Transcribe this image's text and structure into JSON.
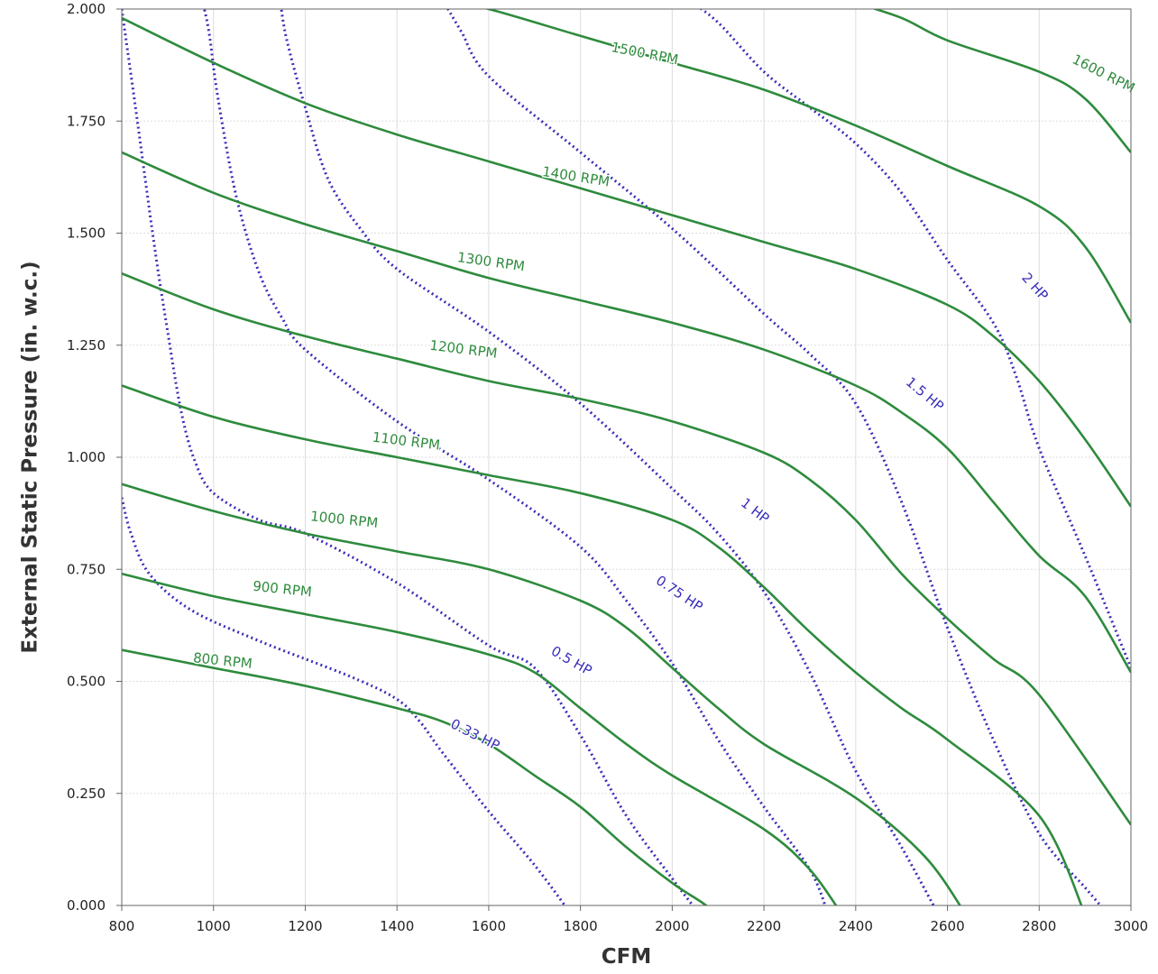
{
  "chart_data": {
    "type": "line",
    "xlabel": "CFM",
    "ylabel": "External Static Pressure (in. w.c.)",
    "xlim": [
      800,
      3000
    ],
    "ylim": [
      0,
      2
    ],
    "x_ticks": [
      800,
      1000,
      1200,
      1400,
      1600,
      1800,
      2000,
      2200,
      2400,
      2600,
      2800,
      3000
    ],
    "y_ticks": [
      {
        "value": 0,
        "label": "0.000"
      },
      {
        "value": 0.25,
        "label": "0.250"
      },
      {
        "value": 0.5,
        "label": "0.500"
      },
      {
        "value": 0.75,
        "label": "0.750"
      },
      {
        "value": 1,
        "label": "1.000"
      },
      {
        "value": 1.25,
        "label": "1.250"
      },
      {
        "value": 1.5,
        "label": "1.500"
      },
      {
        "value": 1.75,
        "label": "1.750"
      },
      {
        "value": 2,
        "label": "2.000"
      }
    ],
    "grid": true,
    "colors": {
      "rpm": "#2e8b3d",
      "hp": "#3a2fb8",
      "grid": "#dddddd",
      "axis": "#666666"
    },
    "rpm_series": [
      {
        "name": "800 RPM",
        "points": [
          [
            800,
            0.57
          ],
          [
            1000,
            0.53
          ],
          [
            1200,
            0.49
          ],
          [
            1400,
            0.44
          ],
          [
            1500,
            0.41
          ],
          [
            1600,
            0.36
          ],
          [
            1700,
            0.29
          ],
          [
            1800,
            0.22
          ],
          [
            1900,
            0.13
          ],
          [
            2000,
            0.05
          ],
          [
            2060,
            0.01
          ],
          [
            2100,
            -0.02
          ]
        ]
      },
      {
        "name": "900 RPM",
        "points": [
          [
            800,
            0.74
          ],
          [
            1000,
            0.69
          ],
          [
            1200,
            0.65
          ],
          [
            1400,
            0.61
          ],
          [
            1600,
            0.56
          ],
          [
            1700,
            0.52
          ],
          [
            1800,
            0.44
          ],
          [
            1900,
            0.36
          ],
          [
            2000,
            0.29
          ],
          [
            2200,
            0.17
          ],
          [
            2300,
            0.08
          ],
          [
            2370,
            -0.02
          ]
        ]
      },
      {
        "name": "1000 RPM",
        "points": [
          [
            800,
            0.94
          ],
          [
            1000,
            0.88
          ],
          [
            1200,
            0.83
          ],
          [
            1400,
            0.79
          ],
          [
            1600,
            0.75
          ],
          [
            1800,
            0.68
          ],
          [
            1900,
            0.62
          ],
          [
            2000,
            0.53
          ],
          [
            2100,
            0.44
          ],
          [
            2200,
            0.36
          ],
          [
            2400,
            0.24
          ],
          [
            2550,
            0.11
          ],
          [
            2640,
            -0.02
          ]
        ]
      },
      {
        "name": "1100 RPM",
        "points": [
          [
            800,
            1.16
          ],
          [
            1000,
            1.09
          ],
          [
            1200,
            1.04
          ],
          [
            1400,
            1.0
          ],
          [
            1600,
            0.96
          ],
          [
            1800,
            0.92
          ],
          [
            2000,
            0.86
          ],
          [
            2100,
            0.8
          ],
          [
            2200,
            0.71
          ],
          [
            2300,
            0.61
          ],
          [
            2400,
            0.52
          ],
          [
            2500,
            0.44
          ],
          [
            2600,
            0.37
          ],
          [
            2800,
            0.2
          ],
          [
            2900,
            -0.02
          ]
        ]
      },
      {
        "name": "1200 RPM",
        "points": [
          [
            800,
            1.41
          ],
          [
            1000,
            1.33
          ],
          [
            1200,
            1.27
          ],
          [
            1400,
            1.22
          ],
          [
            1600,
            1.17
          ],
          [
            1800,
            1.13
          ],
          [
            2000,
            1.08
          ],
          [
            2200,
            1.01
          ],
          [
            2300,
            0.95
          ],
          [
            2400,
            0.86
          ],
          [
            2500,
            0.74
          ],
          [
            2600,
            0.64
          ],
          [
            2700,
            0.55
          ],
          [
            2800,
            0.47
          ],
          [
            3000,
            0.18
          ]
        ]
      },
      {
        "name": "1300 RPM",
        "points": [
          [
            800,
            1.68
          ],
          [
            1000,
            1.59
          ],
          [
            1200,
            1.52
          ],
          [
            1400,
            1.46
          ],
          [
            1600,
            1.4
          ],
          [
            1800,
            1.35
          ],
          [
            2000,
            1.3
          ],
          [
            2200,
            1.24
          ],
          [
            2400,
            1.16
          ],
          [
            2500,
            1.1
          ],
          [
            2600,
            1.02
          ],
          [
            2700,
            0.9
          ],
          [
            2800,
            0.78
          ],
          [
            2900,
            0.69
          ],
          [
            3000,
            0.52
          ]
        ]
      },
      {
        "name": "1400 RPM",
        "points": [
          [
            800,
            1.98
          ],
          [
            1000,
            1.88
          ],
          [
            1200,
            1.79
          ],
          [
            1400,
            1.72
          ],
          [
            1600,
            1.66
          ],
          [
            1800,
            1.6
          ],
          [
            2000,
            1.54
          ],
          [
            2200,
            1.48
          ],
          [
            2400,
            1.42
          ],
          [
            2600,
            1.34
          ],
          [
            2700,
            1.27
          ],
          [
            2800,
            1.17
          ],
          [
            2900,
            1.04
          ],
          [
            3000,
            0.89
          ]
        ]
      },
      {
        "name": "1500 RPM",
        "points": [
          [
            1500,
            2.02
          ],
          [
            1600,
            2.0
          ],
          [
            1800,
            1.94
          ],
          [
            2000,
            1.88
          ],
          [
            2200,
            1.82
          ],
          [
            2400,
            1.74
          ],
          [
            2600,
            1.65
          ],
          [
            2800,
            1.56
          ],
          [
            2900,
            1.47
          ],
          [
            3000,
            1.3
          ]
        ]
      },
      {
        "name": "1600 RPM",
        "points": [
          [
            2380,
            2.02
          ],
          [
            2500,
            1.98
          ],
          [
            2600,
            1.93
          ],
          [
            2800,
            1.86
          ],
          [
            2900,
            1.8
          ],
          [
            3000,
            1.68
          ]
        ]
      }
    ],
    "hp_series": [
      {
        "name": "0.33 HP",
        "points": [
          [
            800,
            0.91
          ],
          [
            820,
            0.83
          ],
          [
            860,
            0.74
          ],
          [
            950,
            0.66
          ],
          [
            1100,
            0.59
          ],
          [
            1300,
            0.51
          ],
          [
            1400,
            0.46
          ],
          [
            1450,
            0.41
          ],
          [
            1500,
            0.34
          ],
          [
            1600,
            0.21
          ],
          [
            1700,
            0.09
          ],
          [
            1780,
            -0.02
          ]
        ]
      },
      {
        "name": "0.5 HP",
        "points": [
          [
            800,
            2.0
          ],
          [
            830,
            1.78
          ],
          [
            870,
            1.48
          ],
          [
            900,
            1.28
          ],
          [
            930,
            1.1
          ],
          [
            960,
            0.99
          ],
          [
            1000,
            0.92
          ],
          [
            1100,
            0.86
          ],
          [
            1200,
            0.83
          ],
          [
            1400,
            0.72
          ],
          [
            1600,
            0.58
          ],
          [
            1700,
            0.53
          ],
          [
            1800,
            0.38
          ],
          [
            1900,
            0.2
          ],
          [
            2000,
            0.06
          ],
          [
            2060,
            -0.02
          ]
        ]
      },
      {
        "name": "0.75 HP",
        "points": [
          [
            975,
            2.02
          ],
          [
            990,
            1.95
          ],
          [
            1010,
            1.8
          ],
          [
            1050,
            1.58
          ],
          [
            1100,
            1.41
          ],
          [
            1150,
            1.31
          ],
          [
            1200,
            1.24
          ],
          [
            1400,
            1.08
          ],
          [
            1600,
            0.95
          ],
          [
            1800,
            0.8
          ],
          [
            1900,
            0.68
          ],
          [
            2000,
            0.54
          ],
          [
            2100,
            0.37
          ],
          [
            2200,
            0.22
          ],
          [
            2300,
            0.08
          ],
          [
            2340,
            -0.02
          ]
        ]
      },
      {
        "name": "1 HP",
        "points": [
          [
            1145,
            2.02
          ],
          [
            1160,
            1.93
          ],
          [
            1200,
            1.78
          ],
          [
            1250,
            1.62
          ],
          [
            1320,
            1.51
          ],
          [
            1400,
            1.42
          ],
          [
            1600,
            1.28
          ],
          [
            1800,
            1.12
          ],
          [
            2000,
            0.93
          ],
          [
            2100,
            0.83
          ],
          [
            2200,
            0.7
          ],
          [
            2300,
            0.52
          ],
          [
            2400,
            0.3
          ],
          [
            2500,
            0.13
          ],
          [
            2580,
            -0.02
          ]
        ]
      },
      {
        "name": "1.5 HP",
        "points": [
          [
            1500,
            2.02
          ],
          [
            1540,
            1.95
          ],
          [
            1600,
            1.85
          ],
          [
            1800,
            1.68
          ],
          [
            2000,
            1.51
          ],
          [
            2200,
            1.32
          ],
          [
            2300,
            1.23
          ],
          [
            2400,
            1.12
          ],
          [
            2500,
            0.9
          ],
          [
            2600,
            0.62
          ],
          [
            2700,
            0.37
          ],
          [
            2800,
            0.16
          ],
          [
            2900,
            0.04
          ],
          [
            2950,
            -0.02
          ]
        ]
      },
      {
        "name": "2 HP",
        "points": [
          [
            2035,
            2.02
          ],
          [
            2100,
            1.97
          ],
          [
            2200,
            1.86
          ],
          [
            2300,
            1.78
          ],
          [
            2400,
            1.7
          ],
          [
            2500,
            1.59
          ],
          [
            2600,
            1.44
          ],
          [
            2700,
            1.3
          ],
          [
            2750,
            1.18
          ],
          [
            2800,
            1.02
          ],
          [
            2900,
            0.78
          ],
          [
            3000,
            0.53
          ]
        ]
      }
    ],
    "labels": [
      {
        "text": "800 RPM",
        "x": 1020,
        "y": 0.545,
        "angle": 6,
        "series": "rpm"
      },
      {
        "text": "900 RPM",
        "x": 1150,
        "y": 0.705,
        "angle": 6,
        "series": "rpm"
      },
      {
        "text": "1000 RPM",
        "x": 1285,
        "y": 0.86,
        "angle": 6,
        "series": "rpm"
      },
      {
        "text": "1100 RPM",
        "x": 1420,
        "y": 1.035,
        "angle": 7,
        "series": "rpm"
      },
      {
        "text": "1200 RPM",
        "x": 1545,
        "y": 1.24,
        "angle": 7,
        "series": "rpm"
      },
      {
        "text": "1300 RPM",
        "x": 1605,
        "y": 1.435,
        "angle": 8,
        "series": "rpm"
      },
      {
        "text": "1400 RPM",
        "x": 1790,
        "y": 1.625,
        "angle": 9,
        "series": "rpm"
      },
      {
        "text": "1500 RPM",
        "x": 1940,
        "y": 1.9,
        "angle": 11,
        "series": "rpm"
      },
      {
        "text": "1600 RPM",
        "x": 2940,
        "y": 1.855,
        "angle": 27,
        "series": "rpm"
      },
      {
        "text": "0.33 HP",
        "x": 1570,
        "y": 0.38,
        "angle": 27,
        "series": "hp"
      },
      {
        "text": "0.5 HP",
        "x": 1780,
        "y": 0.545,
        "angle": 30,
        "series": "hp"
      },
      {
        "text": "0.75 HP",
        "x": 2015,
        "y": 0.695,
        "angle": 34,
        "series": "hp"
      },
      {
        "text": "1 HP",
        "x": 2180,
        "y": 0.88,
        "angle": 38,
        "series": "hp"
      },
      {
        "text": "1.5 HP",
        "x": 2550,
        "y": 1.14,
        "angle": 40,
        "series": "hp"
      },
      {
        "text": "2 HP",
        "x": 2790,
        "y": 1.38,
        "angle": 48,
        "series": "hp"
      }
    ]
  }
}
